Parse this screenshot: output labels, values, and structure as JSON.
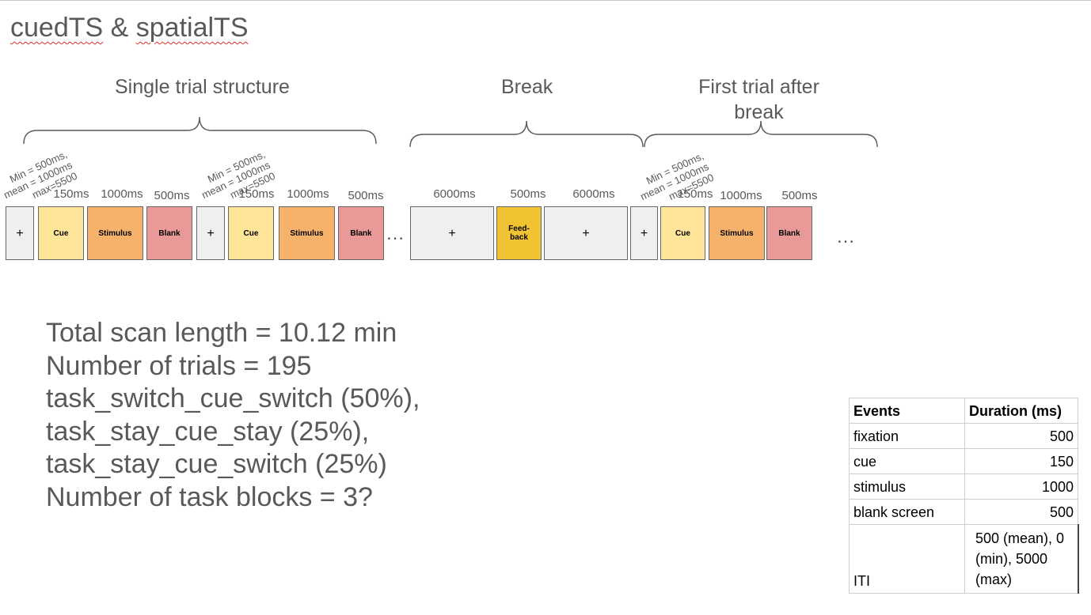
{
  "title": {
    "part1": "cuedTS",
    "part2": " & ",
    "part3": "spatialTS"
  },
  "sections": {
    "single": "Single trial structure",
    "break": "Break",
    "first": "First trial after break"
  },
  "iti_label": {
    "line1": "Min = 500ms,",
    "line2": "mean = 1000ms",
    "line3": "max=5500"
  },
  "durations": {
    "d1": "150ms",
    "d2": "1000ms",
    "d3": "500ms",
    "d4": "150ms",
    "d5": "1000ms",
    "d6": "500ms",
    "d7": "6000ms",
    "d8": "500ms",
    "d9": "6000ms",
    "d10": "150ms",
    "d11": "1000ms",
    "d12": "500ms"
  },
  "boxes": {
    "fix": "+",
    "cue": "Cue",
    "stimulus": "Stimulus",
    "blank": "Blank",
    "feedback": "Feed-back"
  },
  "ellipsis": "…",
  "summary": {
    "line1": "Total scan length = 10.12 min",
    "line2": "Number of trials = 195",
    "line3": "task_switch_cue_switch (50%),",
    "line4": "task_stay_cue_stay (25%),",
    "line5": "task_stay_cue_switch (25%)",
    "line6": "Number of task blocks = 3?"
  },
  "table": {
    "headers": [
      "Events",
      "Duration (ms)"
    ],
    "rows": [
      {
        "event": "fixation",
        "duration": "500"
      },
      {
        "event": "cue",
        "duration": "150"
      },
      {
        "event": "stimulus",
        "duration": "1000"
      },
      {
        "event": "blank screen",
        "duration": "500"
      },
      {
        "event": "ITI",
        "duration": "500 (mean), 0 (min), 5000 (max)"
      }
    ]
  },
  "colors": {
    "fixation": "#efefef",
    "cue": "#ffe599",
    "stimulus": "#f6b26b",
    "blank": "#ea9999",
    "feedback": "#f1c232"
  }
}
